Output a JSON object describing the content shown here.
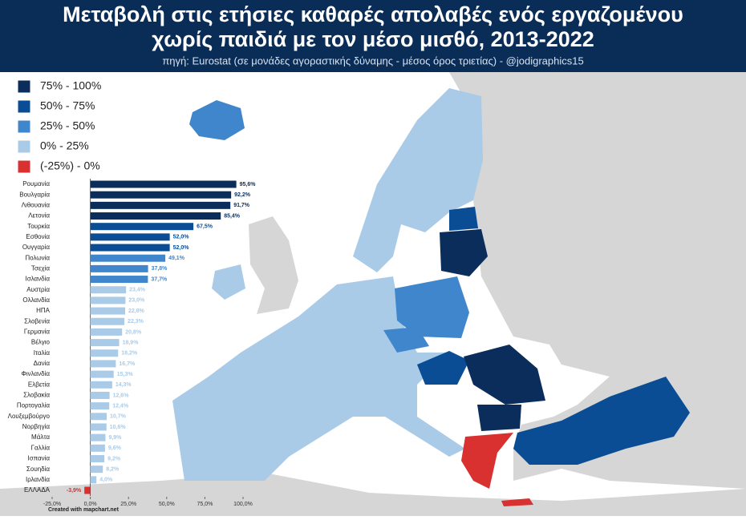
{
  "header": {
    "title": [
      "Μεταβολή στις ετήσιες καθαρές απολαβές ενός εργαζομένου",
      "χωρίς παιδιά με τον μέσο μισθό, 2013-2022"
    ],
    "source": "πηγή: Eurostat (σε μονάδες αγοραστικής δύναμης - μέσος όρος τριετίας) - @jodigraphics15"
  },
  "legend": [
    {
      "label": "75% - 100%",
      "color": "#0b2d5b"
    },
    {
      "label": "50% - 75%",
      "color": "#0a4d94"
    },
    {
      "label": "25% - 50%",
      "color": "#3f86cc"
    },
    {
      "label": "0% - 25%",
      "color": "#a9cbe8"
    },
    {
      "label": "(-25%) - 0%",
      "color": "#d93030"
    }
  ],
  "chart_data": {
    "type": "bar",
    "orientation": "horizontal",
    "categories": [
      "Ρουμανία",
      "Βουλγαρία",
      "Λιθουανία",
      "Λετονία",
      "Τουρκία",
      "Εσθονία",
      "Ουγγαρία",
      "Πολωνία",
      "Τσεχία",
      "Ισλανδία",
      "Αυστρία",
      "Ολλανδία",
      "ΗΠΑ",
      "Σλοβενία",
      "Γερμανία",
      "Βέλγιο",
      "Ιταλία",
      "Δανία",
      "Φινλανδία",
      "Ελβετία",
      "Σλοβακία",
      "Πορτογαλία",
      "Λουξεμβούργο",
      "Νορβηγία",
      "Μάλτα",
      "Γαλλία",
      "Ισπανία",
      "Σουηδία",
      "Ιρλανδία",
      "ΕΛΛΑΔΑ"
    ],
    "values": [
      95.6,
      92.2,
      91.7,
      85.4,
      67.5,
      52.0,
      52.0,
      49.1,
      37.8,
      37.7,
      23.4,
      23.0,
      22.8,
      22.3,
      20.8,
      18.9,
      18.2,
      16.7,
      15.3,
      14.3,
      12.6,
      12.4,
      10.7,
      10.6,
      9.9,
      9.6,
      9.2,
      8.2,
      4.0,
      -3.9
    ],
    "value_labels": [
      "95,6%",
      "92,2%",
      "91,7%",
      "85,4%",
      "67,5%",
      "52,0%",
      "52,0%",
      "49,1%",
      "37,8%",
      "37,7%",
      "23,4%",
      "23,0%",
      "22,8%",
      "22,3%",
      "20,8%",
      "18,9%",
      "18,2%",
      "16,7%",
      "15,3%",
      "14,3%",
      "12,6%",
      "12,4%",
      "10,7%",
      "10,6%",
      "9,9%",
      "9,6%",
      "9,2%",
      "8,2%",
      "4,0%",
      "-3,9%"
    ],
    "colors": [
      "#0b2d5b",
      "#0b2d5b",
      "#0b2d5b",
      "#0b2d5b",
      "#0a4d94",
      "#0a4d94",
      "#0a4d94",
      "#3f86cc",
      "#3f86cc",
      "#3f86cc",
      "#a9cbe8",
      "#a9cbe8",
      "#a9cbe8",
      "#a9cbe8",
      "#a9cbe8",
      "#a9cbe8",
      "#a9cbe8",
      "#a9cbe8",
      "#a9cbe8",
      "#a9cbe8",
      "#a9cbe8",
      "#a9cbe8",
      "#a9cbe8",
      "#a9cbe8",
      "#a9cbe8",
      "#a9cbe8",
      "#a9cbe8",
      "#a9cbe8",
      "#a9cbe8",
      "#d93030"
    ],
    "xlim": [
      -25,
      100
    ],
    "xticks": [
      {
        "value": -25,
        "label": "-25,0%"
      },
      {
        "value": 0,
        "label": "0,0%"
      },
      {
        "value": 25,
        "label": "25,0%"
      },
      {
        "value": 50,
        "label": "50,0%"
      },
      {
        "value": 75,
        "label": "75,0%"
      },
      {
        "value": 100,
        "label": "100,0%"
      }
    ]
  },
  "footer": "Created with mapchart.net"
}
